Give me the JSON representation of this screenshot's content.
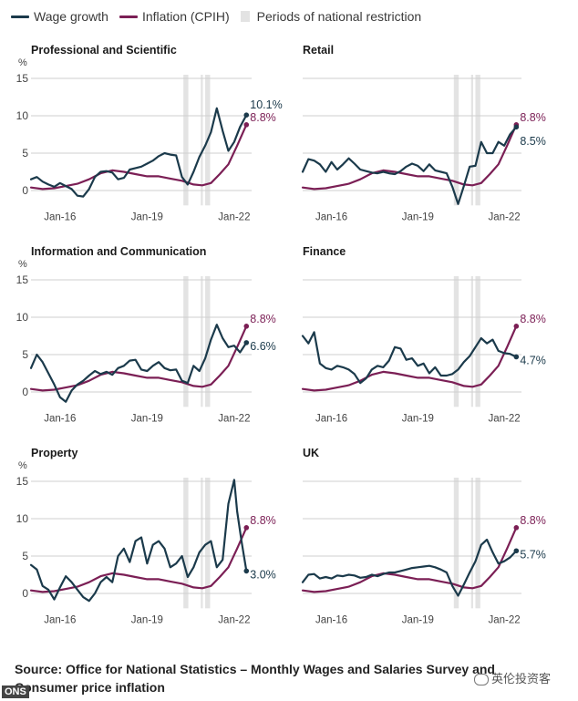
{
  "legend": {
    "wage": "Wage growth",
    "inflation": "Inflation (CPIH)",
    "restriction": "Periods of national restriction"
  },
  "colors": {
    "wage": "#1b3a4b",
    "inflation": "#7b1f55",
    "restriction": "#e3e3e3",
    "grid": "#cfcfcf",
    "text": "#1a1a1a"
  },
  "source": "Source: Office for National Statistics – Monthly Wages and Salaries Survey and Consumer price inflation",
  "footer": {
    "ons_logo": "ONS",
    "watermark": "英伦投资客"
  },
  "chart_data": [
    {
      "type": "line",
      "title": "Professional and Scientific",
      "y_unit": "%",
      "ylim": [
        -1.5,
        15
      ],
      "yticks": [
        0,
        5,
        10,
        15
      ],
      "xlim": [
        2015.0,
        2022.6
      ],
      "xticks": [
        {
          "x": 2016,
          "label": "Jan-16"
        },
        {
          "x": 2019,
          "label": "Jan-19"
        },
        {
          "x": 2022,
          "label": "Jan-22"
        }
      ],
      "restrictions": [
        [
          2020.25,
          2020.42
        ],
        [
          2020.85,
          2020.92
        ],
        [
          2021.0,
          2021.17
        ]
      ],
      "series": [
        {
          "name": "Wage growth",
          "key": "wage",
          "end_label": "10.1%",
          "x": [
            2015.0,
            2015.2,
            2015.4,
            2015.6,
            2015.8,
            2016.0,
            2016.2,
            2016.4,
            2016.6,
            2016.8,
            2017.0,
            2017.2,
            2017.4,
            2017.6,
            2017.8,
            2018.0,
            2018.2,
            2018.4,
            2018.6,
            2018.8,
            2019.0,
            2019.2,
            2019.4,
            2019.6,
            2019.8,
            2020.0,
            2020.2,
            2020.4,
            2020.6,
            2020.8,
            2021.0,
            2021.2,
            2021.4,
            2021.6,
            2021.8,
            2022.0,
            2022.2,
            2022.42
          ],
          "y": [
            1.5,
            1.8,
            1.2,
            0.8,
            0.5,
            1.0,
            0.6,
            0.2,
            -0.7,
            -0.8,
            0.2,
            1.8,
            2.5,
            2.6,
            2.4,
            1.5,
            1.7,
            2.8,
            3.0,
            3.2,
            3.6,
            4.0,
            4.6,
            5.0,
            4.8,
            4.7,
            1.8,
            0.8,
            2.5,
            4.5,
            6.0,
            7.8,
            11.0,
            8.0,
            5.3,
            6.5,
            8.5,
            10.1
          ]
        },
        {
          "name": "Inflation (CPIH)",
          "key": "inflation",
          "end_label": "8.8%",
          "x": [
            2015.0,
            2015.4,
            2015.8,
            2016.2,
            2016.6,
            2017.0,
            2017.4,
            2017.8,
            2018.2,
            2018.6,
            2019.0,
            2019.4,
            2019.8,
            2020.2,
            2020.6,
            2020.9,
            2021.2,
            2021.5,
            2021.8,
            2022.1,
            2022.42
          ],
          "y": [
            0.4,
            0.2,
            0.3,
            0.6,
            0.9,
            1.5,
            2.3,
            2.7,
            2.5,
            2.2,
            1.9,
            1.9,
            1.6,
            1.3,
            0.8,
            0.7,
            1.0,
            2.2,
            3.5,
            6.0,
            8.8
          ]
        }
      ]
    },
    {
      "type": "line",
      "title": "Retail",
      "y_unit": "",
      "ylim": [
        -1.5,
        15
      ],
      "yticks": [],
      "xlim": [
        2015.0,
        2022.6
      ],
      "xticks": [
        {
          "x": 2016,
          "label": "Jan-16"
        },
        {
          "x": 2019,
          "label": "Jan-19"
        },
        {
          "x": 2022,
          "label": "Jan-22"
        }
      ],
      "restrictions": [
        [
          2020.25,
          2020.42
        ],
        [
          2020.85,
          2020.92
        ],
        [
          2021.0,
          2021.17
        ]
      ],
      "series": [
        {
          "name": "Wage growth",
          "key": "wage",
          "end_label": "8.5%",
          "x": [
            2015.0,
            2015.2,
            2015.4,
            2015.6,
            2015.8,
            2016.0,
            2016.2,
            2016.4,
            2016.6,
            2016.8,
            2017.0,
            2017.2,
            2017.4,
            2017.6,
            2017.8,
            2018.0,
            2018.2,
            2018.4,
            2018.6,
            2018.8,
            2019.0,
            2019.2,
            2019.4,
            2019.6,
            2019.8,
            2020.0,
            2020.2,
            2020.4,
            2020.6,
            2020.8,
            2021.0,
            2021.2,
            2021.4,
            2021.6,
            2021.8,
            2022.0,
            2022.2,
            2022.42
          ],
          "y": [
            2.5,
            4.2,
            4.0,
            3.5,
            2.5,
            3.8,
            2.8,
            3.5,
            4.3,
            3.6,
            2.8,
            2.6,
            2.4,
            2.3,
            2.5,
            2.3,
            2.2,
            2.6,
            3.2,
            3.6,
            3.3,
            2.6,
            3.5,
            2.7,
            2.5,
            2.3,
            0.5,
            -1.8,
            0.6,
            3.2,
            3.3,
            6.5,
            5.0,
            5.0,
            6.5,
            6.0,
            7.5,
            8.5
          ]
        },
        {
          "name": "Inflation (CPIH)",
          "key": "inflation",
          "end_label": "8.8%",
          "x": [
            2015.0,
            2015.4,
            2015.8,
            2016.2,
            2016.6,
            2017.0,
            2017.4,
            2017.8,
            2018.2,
            2018.6,
            2019.0,
            2019.4,
            2019.8,
            2020.2,
            2020.6,
            2020.9,
            2021.2,
            2021.5,
            2021.8,
            2022.1,
            2022.42
          ],
          "y": [
            0.4,
            0.2,
            0.3,
            0.6,
            0.9,
            1.5,
            2.3,
            2.7,
            2.5,
            2.2,
            1.9,
            1.9,
            1.6,
            1.3,
            0.8,
            0.7,
            1.0,
            2.2,
            3.5,
            6.0,
            8.8
          ]
        }
      ]
    },
    {
      "type": "line",
      "title": "Information and Communication",
      "y_unit": "%",
      "ylim": [
        -1.5,
        15
      ],
      "yticks": [
        0,
        5,
        10,
        15
      ],
      "xlim": [
        2015.0,
        2022.6
      ],
      "xticks": [
        {
          "x": 2016,
          "label": "Jan-16"
        },
        {
          "x": 2019,
          "label": "Jan-19"
        },
        {
          "x": 2022,
          "label": "Jan-22"
        }
      ],
      "restrictions": [
        [
          2020.25,
          2020.42
        ],
        [
          2020.85,
          2020.92
        ],
        [
          2021.0,
          2021.17
        ]
      ],
      "series": [
        {
          "name": "Wage growth",
          "key": "wage",
          "end_label": "6.6%",
          "x": [
            2015.0,
            2015.2,
            2015.4,
            2015.6,
            2015.8,
            2016.0,
            2016.2,
            2016.4,
            2016.6,
            2016.8,
            2017.0,
            2017.2,
            2017.4,
            2017.6,
            2017.8,
            2018.0,
            2018.2,
            2018.4,
            2018.6,
            2018.8,
            2019.0,
            2019.2,
            2019.4,
            2019.6,
            2019.8,
            2020.0,
            2020.2,
            2020.4,
            2020.6,
            2020.8,
            2021.0,
            2021.2,
            2021.4,
            2021.6,
            2021.8,
            2022.0,
            2022.2,
            2022.42
          ],
          "y": [
            3.2,
            5.0,
            4.0,
            2.5,
            1.0,
            -0.7,
            -1.3,
            0.2,
            1.0,
            1.5,
            2.2,
            2.8,
            2.4,
            2.7,
            2.3,
            3.2,
            3.5,
            4.2,
            4.3,
            3.0,
            2.8,
            3.5,
            4.0,
            3.2,
            2.9,
            3.0,
            1.5,
            1.2,
            3.5,
            2.8,
            4.5,
            7.0,
            9.0,
            7.2,
            6.0,
            6.2,
            5.3,
            6.6
          ]
        },
        {
          "name": "Inflation (CPIH)",
          "key": "inflation",
          "end_label": "8.8%",
          "x": [
            2015.0,
            2015.4,
            2015.8,
            2016.2,
            2016.6,
            2017.0,
            2017.4,
            2017.8,
            2018.2,
            2018.6,
            2019.0,
            2019.4,
            2019.8,
            2020.2,
            2020.6,
            2020.9,
            2021.2,
            2021.5,
            2021.8,
            2022.1,
            2022.42
          ],
          "y": [
            0.4,
            0.2,
            0.3,
            0.6,
            0.9,
            1.5,
            2.3,
            2.7,
            2.5,
            2.2,
            1.9,
            1.9,
            1.6,
            1.3,
            0.8,
            0.7,
            1.0,
            2.2,
            3.5,
            6.0,
            8.8
          ]
        }
      ]
    },
    {
      "type": "line",
      "title": "Finance",
      "y_unit": "",
      "ylim": [
        -1.5,
        15
      ],
      "yticks": [],
      "xlim": [
        2015.0,
        2022.6
      ],
      "xticks": [
        {
          "x": 2016,
          "label": "Jan-16"
        },
        {
          "x": 2019,
          "label": "Jan-19"
        },
        {
          "x": 2022,
          "label": "Jan-22"
        }
      ],
      "restrictions": [
        [
          2020.25,
          2020.42
        ],
        [
          2020.85,
          2020.92
        ],
        [
          2021.0,
          2021.17
        ]
      ],
      "series": [
        {
          "name": "Wage growth",
          "key": "wage",
          "end_label": "4.7%",
          "x": [
            2015.0,
            2015.2,
            2015.4,
            2015.6,
            2015.8,
            2016.0,
            2016.2,
            2016.4,
            2016.6,
            2016.8,
            2017.0,
            2017.2,
            2017.4,
            2017.6,
            2017.8,
            2018.0,
            2018.2,
            2018.4,
            2018.6,
            2018.8,
            2019.0,
            2019.2,
            2019.4,
            2019.6,
            2019.8,
            2020.0,
            2020.2,
            2020.4,
            2020.6,
            2020.8,
            2021.0,
            2021.2,
            2021.4,
            2021.6,
            2021.8,
            2022.0,
            2022.2,
            2022.42
          ],
          "y": [
            7.5,
            6.5,
            8.0,
            3.8,
            3.2,
            3.0,
            3.5,
            3.3,
            3.0,
            2.4,
            1.2,
            1.8,
            3.0,
            3.5,
            3.3,
            4.2,
            6.0,
            5.8,
            4.3,
            4.5,
            3.5,
            3.8,
            2.5,
            3.3,
            2.2,
            2.2,
            2.4,
            3.0,
            4.0,
            4.8,
            6.0,
            7.2,
            6.5,
            7.0,
            5.5,
            5.2,
            5.1,
            4.7
          ]
        },
        {
          "name": "Inflation (CPIH)",
          "key": "inflation",
          "end_label": "8.8%",
          "x": [
            2015.0,
            2015.4,
            2015.8,
            2016.2,
            2016.6,
            2017.0,
            2017.4,
            2017.8,
            2018.2,
            2018.6,
            2019.0,
            2019.4,
            2019.8,
            2020.2,
            2020.6,
            2020.9,
            2021.2,
            2021.5,
            2021.8,
            2022.1,
            2022.42
          ],
          "y": [
            0.4,
            0.2,
            0.3,
            0.6,
            0.9,
            1.5,
            2.3,
            2.7,
            2.5,
            2.2,
            1.9,
            1.9,
            1.6,
            1.3,
            0.8,
            0.7,
            1.0,
            2.2,
            3.5,
            6.0,
            8.8
          ]
        }
      ]
    },
    {
      "type": "line",
      "title": "Property",
      "y_unit": "%",
      "ylim": [
        -1.5,
        15
      ],
      "yticks": [
        0,
        5,
        10,
        15
      ],
      "xlim": [
        2015.0,
        2022.6
      ],
      "xticks": [
        {
          "x": 2016,
          "label": "Jan-16"
        },
        {
          "x": 2019,
          "label": "Jan-19"
        },
        {
          "x": 2022,
          "label": "Jan-22"
        }
      ],
      "restrictions": [
        [
          2020.25,
          2020.42
        ],
        [
          2020.85,
          2020.92
        ],
        [
          2021.0,
          2021.17
        ]
      ],
      "series": [
        {
          "name": "Wage growth",
          "key": "wage",
          "end_label": "3.0%",
          "x": [
            2015.0,
            2015.2,
            2015.4,
            2015.6,
            2015.8,
            2016.0,
            2016.2,
            2016.4,
            2016.6,
            2016.8,
            2017.0,
            2017.2,
            2017.4,
            2017.6,
            2017.8,
            2018.0,
            2018.2,
            2018.4,
            2018.6,
            2018.8,
            2019.0,
            2019.2,
            2019.4,
            2019.6,
            2019.8,
            2020.0,
            2020.2,
            2020.4,
            2020.6,
            2020.8,
            2021.0,
            2021.2,
            2021.4,
            2021.6,
            2021.8,
            2022.0,
            2022.1,
            2022.25,
            2022.42
          ],
          "y": [
            3.8,
            3.2,
            1.0,
            0.5,
            -0.8,
            0.8,
            2.3,
            1.5,
            0.5,
            -0.5,
            -1.0,
            0.0,
            1.5,
            2.2,
            1.5,
            5.0,
            6.0,
            4.2,
            7.0,
            7.5,
            4.0,
            6.5,
            7.0,
            6.0,
            3.5,
            4.0,
            5.0,
            2.2,
            3.5,
            5.5,
            6.5,
            7.0,
            3.5,
            4.5,
            12.0,
            15.2,
            11.0,
            7.0,
            3.0
          ]
        },
        {
          "name": "Inflation (CPIH)",
          "key": "inflation",
          "end_label": "8.8%",
          "x": [
            2015.0,
            2015.4,
            2015.8,
            2016.2,
            2016.6,
            2017.0,
            2017.4,
            2017.8,
            2018.2,
            2018.6,
            2019.0,
            2019.4,
            2019.8,
            2020.2,
            2020.6,
            2020.9,
            2021.2,
            2021.5,
            2021.8,
            2022.1,
            2022.42
          ],
          "y": [
            0.4,
            0.2,
            0.3,
            0.6,
            0.9,
            1.5,
            2.3,
            2.7,
            2.5,
            2.2,
            1.9,
            1.9,
            1.6,
            1.3,
            0.8,
            0.7,
            1.0,
            2.2,
            3.5,
            6.0,
            8.8
          ]
        }
      ]
    },
    {
      "type": "line",
      "title": "UK",
      "y_unit": "",
      "ylim": [
        -1.5,
        15
      ],
      "yticks": [],
      "xlim": [
        2015.0,
        2022.6
      ],
      "xticks": [
        {
          "x": 2016,
          "label": "Jan-16"
        },
        {
          "x": 2019,
          "label": "Jan-19"
        },
        {
          "x": 2022,
          "label": "Jan-22"
        }
      ],
      "restrictions": [
        [
          2020.25,
          2020.42
        ],
        [
          2020.85,
          2020.92
        ],
        [
          2021.0,
          2021.17
        ]
      ],
      "series": [
        {
          "name": "Wage growth",
          "key": "wage",
          "end_label": "5.7%",
          "x": [
            2015.0,
            2015.2,
            2015.4,
            2015.6,
            2015.8,
            2016.0,
            2016.2,
            2016.4,
            2016.6,
            2016.8,
            2017.0,
            2017.2,
            2017.4,
            2017.6,
            2017.8,
            2018.0,
            2018.2,
            2018.4,
            2018.6,
            2018.8,
            2019.0,
            2019.2,
            2019.4,
            2019.6,
            2019.8,
            2020.0,
            2020.2,
            2020.4,
            2020.6,
            2020.8,
            2021.0,
            2021.2,
            2021.4,
            2021.6,
            2021.8,
            2022.0,
            2022.2,
            2022.42
          ],
          "y": [
            1.5,
            2.5,
            2.6,
            2.0,
            2.2,
            2.0,
            2.4,
            2.3,
            2.5,
            2.4,
            2.1,
            2.2,
            2.5,
            2.3,
            2.6,
            2.8,
            2.8,
            3.0,
            3.2,
            3.4,
            3.5,
            3.6,
            3.7,
            3.5,
            3.2,
            2.8,
            1.0,
            -0.3,
            1.2,
            2.8,
            4.3,
            6.5,
            7.2,
            5.5,
            4.0,
            4.3,
            4.8,
            5.7
          ]
        },
        {
          "name": "Inflation (CPIH)",
          "key": "inflation",
          "end_label": "8.8%",
          "x": [
            2015.0,
            2015.4,
            2015.8,
            2016.2,
            2016.6,
            2017.0,
            2017.4,
            2017.8,
            2018.2,
            2018.6,
            2019.0,
            2019.4,
            2019.8,
            2020.2,
            2020.6,
            2020.9,
            2021.2,
            2021.5,
            2021.8,
            2022.1,
            2022.42
          ],
          "y": [
            0.4,
            0.2,
            0.3,
            0.6,
            0.9,
            1.5,
            2.3,
            2.7,
            2.5,
            2.2,
            1.9,
            1.9,
            1.6,
            1.3,
            0.8,
            0.7,
            1.0,
            2.2,
            3.5,
            6.0,
            8.8
          ]
        }
      ]
    }
  ]
}
